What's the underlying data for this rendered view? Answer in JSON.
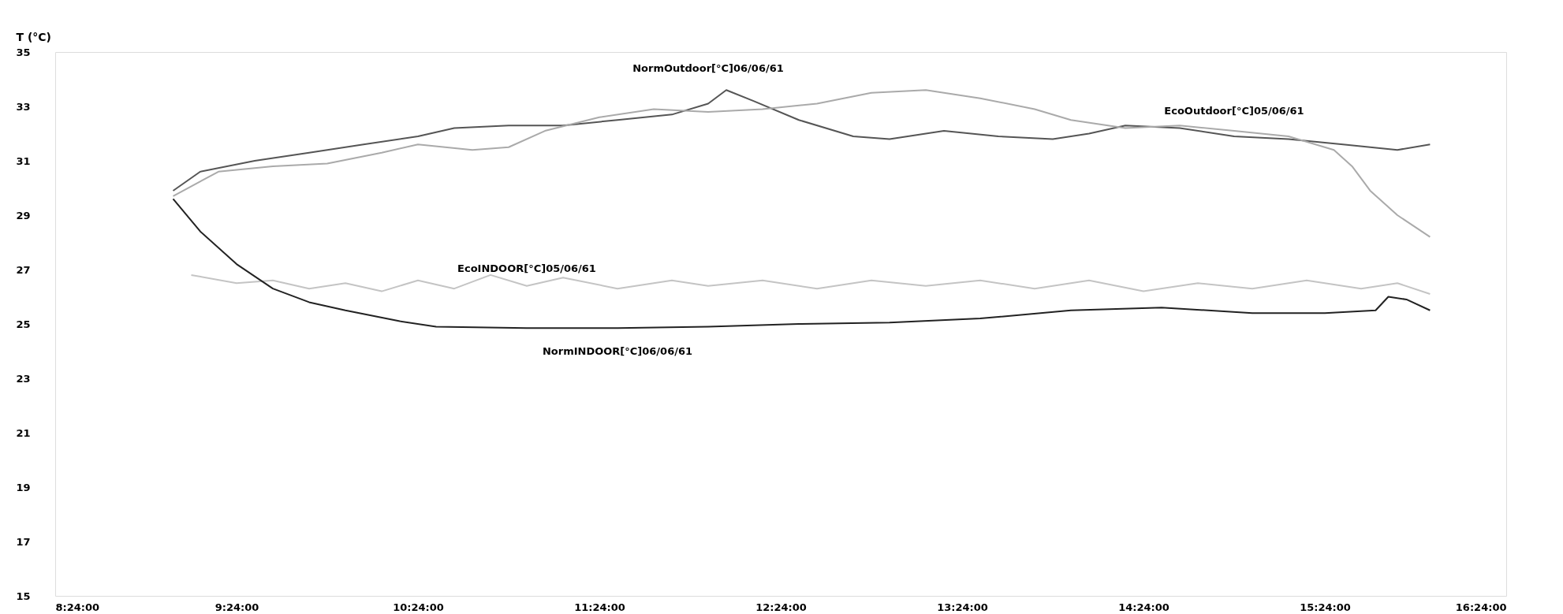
{
  "chart_data": {
    "type": "line",
    "ylabel": "T (°C)",
    "xlim": [
      8.4,
      16.4
    ],
    "xticks": [
      {
        "value": 8.4,
        "label": "8:24:00"
      },
      {
        "value": 9.4,
        "label": "9:24:00"
      },
      {
        "value": 10.4,
        "label": "10:24:00"
      },
      {
        "value": 11.4,
        "label": "11:24:00"
      },
      {
        "value": 12.4,
        "label": "12:24:00"
      },
      {
        "value": 13.4,
        "label": "13:24:00"
      },
      {
        "value": 14.4,
        "label": "14:24:00"
      },
      {
        "value": 15.4,
        "label": "15:24:00"
      },
      {
        "value": 16.4,
        "label": "16:24:00"
      }
    ],
    "ylim": [
      15,
      35
    ],
    "yticks": [
      15,
      17,
      19,
      21,
      23,
      25,
      27,
      29,
      31,
      33,
      35
    ],
    "grid": false,
    "marker": "none",
    "line_style": "solid",
    "series": [
      {
        "name": "NormOutdoor[°C]06/06/61",
        "color": "#555555",
        "x": [
          9.05,
          9.2,
          9.5,
          9.8,
          10.1,
          10.4,
          10.6,
          10.9,
          11.2,
          11.5,
          11.8,
          12.0,
          12.1,
          12.25,
          12.5,
          12.8,
          13.0,
          13.3,
          13.6,
          13.9,
          14.1,
          14.3,
          14.6,
          14.9,
          15.2,
          15.5,
          15.8,
          15.98
        ],
        "values": [
          29.9,
          30.6,
          31.0,
          31.3,
          31.6,
          31.9,
          32.2,
          32.3,
          32.3,
          32.5,
          32.7,
          33.1,
          33.6,
          33.2,
          32.5,
          31.9,
          31.8,
          32.1,
          31.9,
          31.8,
          32.0,
          32.3,
          32.2,
          31.9,
          31.8,
          31.6,
          31.4,
          31.6
        ]
      },
      {
        "name": "EcoOutdoor[°C]05/06/61",
        "color": "#aaaaaa",
        "x": [
          9.05,
          9.3,
          9.6,
          9.9,
          10.2,
          10.4,
          10.7,
          10.9,
          11.1,
          11.4,
          11.7,
          12.0,
          12.3,
          12.6,
          12.9,
          13.2,
          13.5,
          13.8,
          14.0,
          14.3,
          14.6,
          14.9,
          15.2,
          15.45,
          15.55,
          15.65,
          15.8,
          15.98
        ],
        "values": [
          29.7,
          30.6,
          30.8,
          30.9,
          31.3,
          31.6,
          31.4,
          31.5,
          32.1,
          32.6,
          32.9,
          32.8,
          32.9,
          33.1,
          33.5,
          33.6,
          33.3,
          32.9,
          32.5,
          32.2,
          32.3,
          32.1,
          31.9,
          31.4,
          30.8,
          29.9,
          29.0,
          28.2
        ]
      },
      {
        "name": "EcoINDOOR[°C]05/06/61",
        "color": "#c4c4c4",
        "x": [
          9.15,
          9.4,
          9.6,
          9.8,
          10.0,
          10.2,
          10.4,
          10.6,
          10.8,
          11.0,
          11.2,
          11.5,
          11.8,
          12.0,
          12.3,
          12.6,
          12.9,
          13.2,
          13.5,
          13.8,
          14.1,
          14.4,
          14.7,
          15.0,
          15.3,
          15.6,
          15.8,
          15.98
        ],
        "values": [
          26.8,
          26.5,
          26.6,
          26.3,
          26.5,
          26.2,
          26.6,
          26.3,
          26.8,
          26.4,
          26.7,
          26.3,
          26.6,
          26.4,
          26.6,
          26.3,
          26.6,
          26.4,
          26.6,
          26.3,
          26.6,
          26.2,
          26.5,
          26.3,
          26.6,
          26.3,
          26.5,
          26.1
        ]
      },
      {
        "name": "NormINDOOR[°C]06/06/61",
        "color": "#222222",
        "x": [
          9.05,
          9.2,
          9.4,
          9.6,
          9.8,
          10.0,
          10.3,
          10.5,
          11.0,
          11.5,
          12.0,
          12.5,
          13.0,
          13.5,
          14.0,
          14.5,
          15.0,
          15.4,
          15.68,
          15.75,
          15.85,
          15.98
        ],
        "values": [
          29.6,
          28.4,
          27.2,
          26.3,
          25.8,
          25.5,
          25.1,
          24.9,
          24.85,
          24.85,
          24.9,
          25.0,
          25.05,
          25.2,
          25.5,
          25.6,
          25.4,
          25.4,
          25.5,
          26.0,
          25.9,
          25.5
        ]
      }
    ]
  }
}
